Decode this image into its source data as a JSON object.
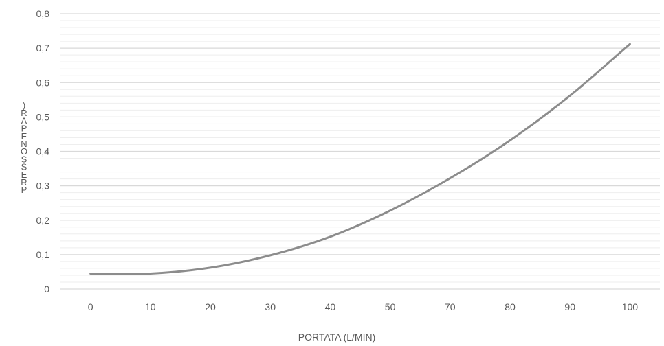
{
  "chart_data": {
    "type": "line",
    "title": "",
    "xlabel": "PORTATA (L/MIN)",
    "ylabel": ")RAPENOSSERP",
    "x_categories": [
      "0",
      "10",
      "20",
      "30",
      "40",
      "50",
      "70",
      "80",
      "90",
      "100"
    ],
    "x_ticks": [
      "0",
      "10",
      "20",
      "30",
      "40",
      "50",
      "70",
      "80",
      "90",
      "100"
    ],
    "y_ticks": [
      "0",
      "0,1",
      "0,2",
      "0,3",
      "0,4",
      "0,5",
      "0,6",
      "0,7",
      "0,8"
    ],
    "ylim": [
      0,
      0.8
    ],
    "grid": true,
    "legend": "none",
    "series": [
      {
        "color": "#8c8c8c",
        "values": [
          0.045,
          0.045,
          0.062,
          0.098,
          0.152,
          0.228,
          0.322,
          0.432,
          0.562,
          0.712
        ]
      }
    ],
    "colors": {
      "line": "#8c8c8c",
      "major_grid": "#d9d9d9",
      "minor_grid": "#eeeeee",
      "text": "#595959"
    }
  }
}
